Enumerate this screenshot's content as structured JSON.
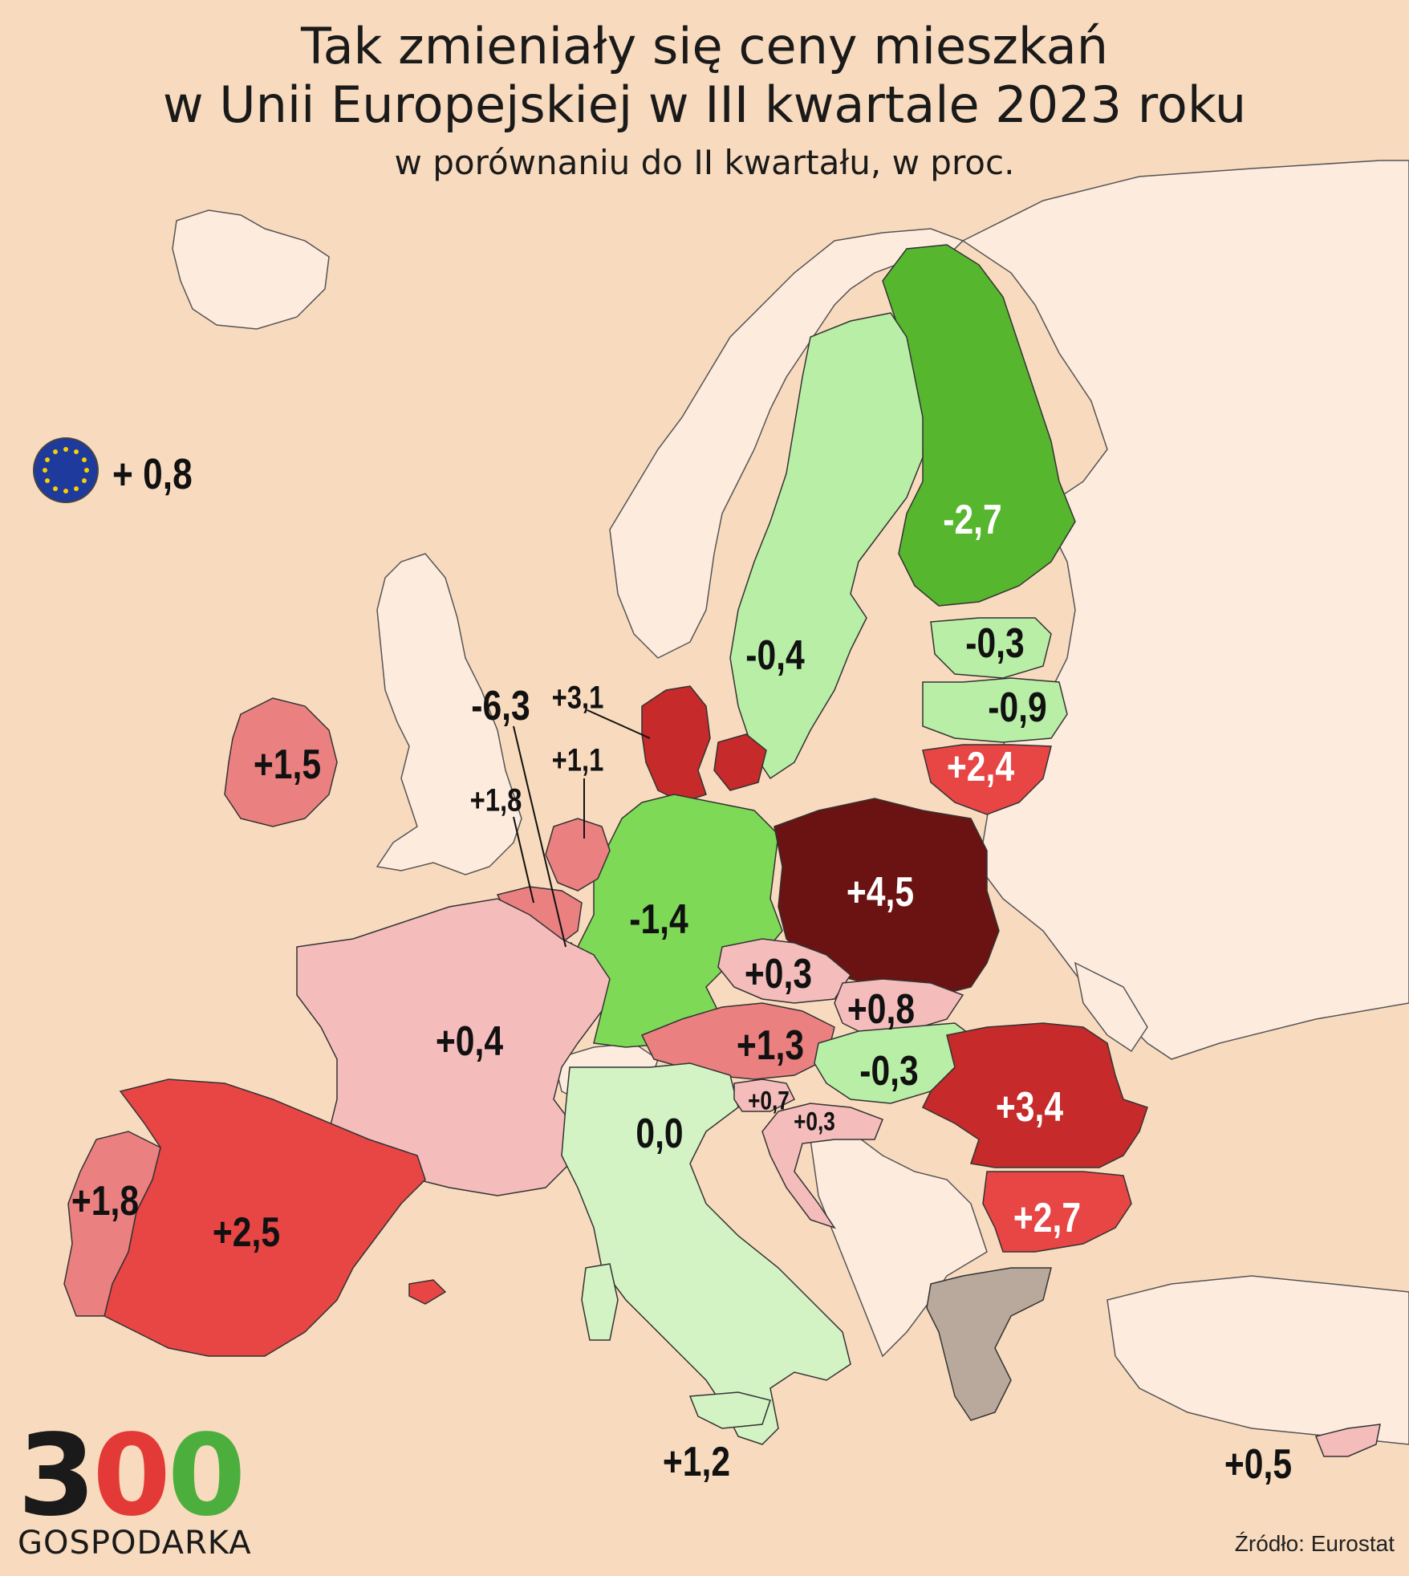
{
  "title": {
    "line1": "Tak zmieniały się ceny mieszkań",
    "line2": "w Unii Europejskiej w III kwartale 2023 roku",
    "subtitle": "w porównaniu do II kwartału, w proc."
  },
  "eu_average": {
    "value": "+ 0,8"
  },
  "legend_colors": {
    "strong_decline": "#56b62e",
    "decline": "#7ed957",
    "slight_decline": "#b8eea6",
    "flat": "#d3f3c4",
    "slight_rise": "#f5bcbc",
    "rise": "#eb8080",
    "strong_rise": "#e84545",
    "very_strong_rise": "#c62a2a",
    "highest_rise": "#6b1212",
    "no_data": "#b8a99c",
    "non_eu_land": "#fdebde",
    "sea": "#f8dbbe"
  },
  "countries": [
    {
      "name": "Finland",
      "value": "-2,7"
    },
    {
      "name": "Sweden",
      "value": "-0,4"
    },
    {
      "name": "Estonia",
      "value": "-0,3"
    },
    {
      "name": "Latvia",
      "value": "-0,9"
    },
    {
      "name": "Lithuania",
      "value": "+2,4"
    },
    {
      "name": "Denmark",
      "value": "+3,1"
    },
    {
      "name": "Luxembourg",
      "value": "-6,3"
    },
    {
      "name": "Netherlands",
      "value": "+1,1"
    },
    {
      "name": "Belgium",
      "value": "+1,8"
    },
    {
      "name": "Ireland",
      "value": "+1,5"
    },
    {
      "name": "Germany",
      "value": "-1,4"
    },
    {
      "name": "Poland",
      "value": "+4,5"
    },
    {
      "name": "Czechia",
      "value": "+0,3"
    },
    {
      "name": "Slovakia",
      "value": "+0,8"
    },
    {
      "name": "Austria",
      "value": "+1,3"
    },
    {
      "name": "Hungary",
      "value": "-0,3"
    },
    {
      "name": "Romania",
      "value": "+3,4"
    },
    {
      "name": "Bulgaria",
      "value": "+2,7"
    },
    {
      "name": "France",
      "value": "+0,4"
    },
    {
      "name": "Slovenia",
      "value": "+0,7"
    },
    {
      "name": "Croatia",
      "value": "+0,3"
    },
    {
      "name": "Italy",
      "value": "0,0"
    },
    {
      "name": "Portugal",
      "value": "+1,8"
    },
    {
      "name": "Spain",
      "value": "+2,5"
    },
    {
      "name": "Malta",
      "value": "+1,2"
    },
    {
      "name": "Cyprus",
      "value": "+0,5"
    }
  ],
  "source": "Źródło: Eurostat",
  "logo": {
    "digits": [
      "3",
      "0",
      "0"
    ],
    "text": "GOSPODARKA"
  }
}
